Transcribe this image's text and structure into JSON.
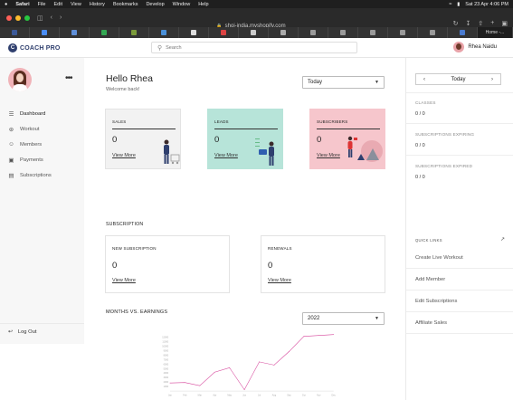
{
  "menubar": {
    "apple": "",
    "app": "Safari",
    "items": [
      "File",
      "Edit",
      "View",
      "History",
      "Bookmarks",
      "Develop",
      "Window",
      "Help"
    ],
    "clock": "Sat 23 Apr  4:06 PM"
  },
  "browser": {
    "url": "shoi-india.myshopify.com",
    "active_tab": "Home -..."
  },
  "header": {
    "logo_text": "COACH PRO",
    "search_placeholder": "Search",
    "user_name": "Rhea Naidu"
  },
  "sidebar": {
    "nav": [
      {
        "label": "Dashboard",
        "icon": "book-icon"
      },
      {
        "label": "Workout",
        "icon": "dumbbell-icon"
      },
      {
        "label": "Members",
        "icon": "members-icon"
      },
      {
        "label": "Payments",
        "icon": "card-icon"
      },
      {
        "label": "Subscriptions",
        "icon": "list-icon"
      }
    ],
    "logout": "Log Out"
  },
  "main": {
    "greeting": "Hello Rhea",
    "welcome": "Welcome back!",
    "period_select": "Today",
    "cards": [
      {
        "title": "SALES",
        "value": "0",
        "link": "View More",
        "color": "#f2f2f2"
      },
      {
        "title": "LEADS",
        "value": "0",
        "link": "View More",
        "color": "#b7e4d9"
      },
      {
        "title": "SUBSCRIBERS",
        "value": "0",
        "link": "View More",
        "color": "#f6c6cc"
      }
    ],
    "subscription_title": "SUBSCRIPTION",
    "sub_cards": [
      {
        "title": "NEW SUBSCRIPTION",
        "value": "0",
        "link": "View More"
      },
      {
        "title": "RENEWALS",
        "value": "0",
        "link": "View More"
      }
    ],
    "earnings_title": "MONTHS VS. EARNINGS",
    "year_select": "2022"
  },
  "chart_data": {
    "type": "line",
    "categories": [
      "Jan",
      "Feb",
      "Mar",
      "Apr",
      "May",
      "Jun",
      "Jul",
      "Aug",
      "Sep",
      "Oct",
      "Nov",
      "Dec"
    ],
    "series": [
      {
        "values": [
          1800,
          1900,
          1200,
          4200,
          5200,
          300,
          6500,
          5800,
          8800,
          12200,
          12400,
          12600
        ]
      }
    ],
    "yticks": [
      1000,
      2000,
      3000,
      4000,
      5000,
      6000,
      7000,
      8000,
      9000,
      10000,
      11000,
      12000
    ],
    "ylim": [
      0,
      13000
    ],
    "color": "#d6459b",
    "grid": false
  },
  "right_panel": {
    "day": "Today",
    "stats": [
      {
        "label": "CLASSES",
        "value": "0 / 0"
      },
      {
        "label": "SUBSCRIPTIONS EXPIRING",
        "value": "0 / 0"
      },
      {
        "label": "SUBSCRIPTIONS EXPIRED",
        "value": "0 / 0"
      }
    ],
    "quick_links_title": "QUICK LINKS",
    "quick_links": [
      "Create Live Workout",
      "Add Member",
      "Edit Subscriptions",
      "Affiliate Sales"
    ]
  }
}
